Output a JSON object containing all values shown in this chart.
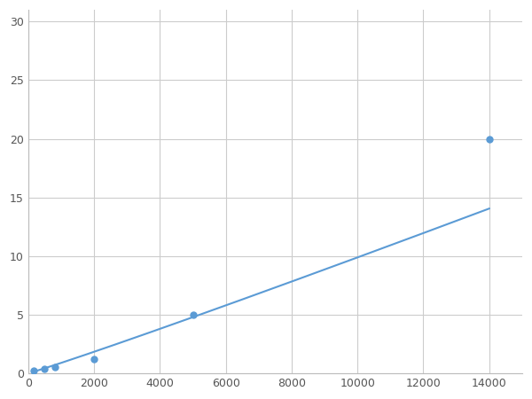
{
  "x": [
    156,
    500,
    800,
    2000,
    5000,
    14000
  ],
  "y": [
    0.2,
    0.4,
    0.5,
    1.2,
    5.0,
    20.0
  ],
  "line_color": "#5b9bd5",
  "marker_color": "#5b9bd5",
  "marker_style": "o",
  "marker_size": 5,
  "line_width": 1.5,
  "xlim": [
    0,
    15000
  ],
  "ylim": [
    0,
    31
  ],
  "xticks": [
    0,
    2000,
    4000,
    6000,
    8000,
    10000,
    12000,
    14000
  ],
  "yticks": [
    0,
    5,
    10,
    15,
    20,
    25,
    30
  ],
  "grid_color": "#cccccc",
  "grid_linestyle": "-",
  "grid_linewidth": 0.8,
  "background_color": "#ffffff",
  "spine_color": "#bbbbbb"
}
